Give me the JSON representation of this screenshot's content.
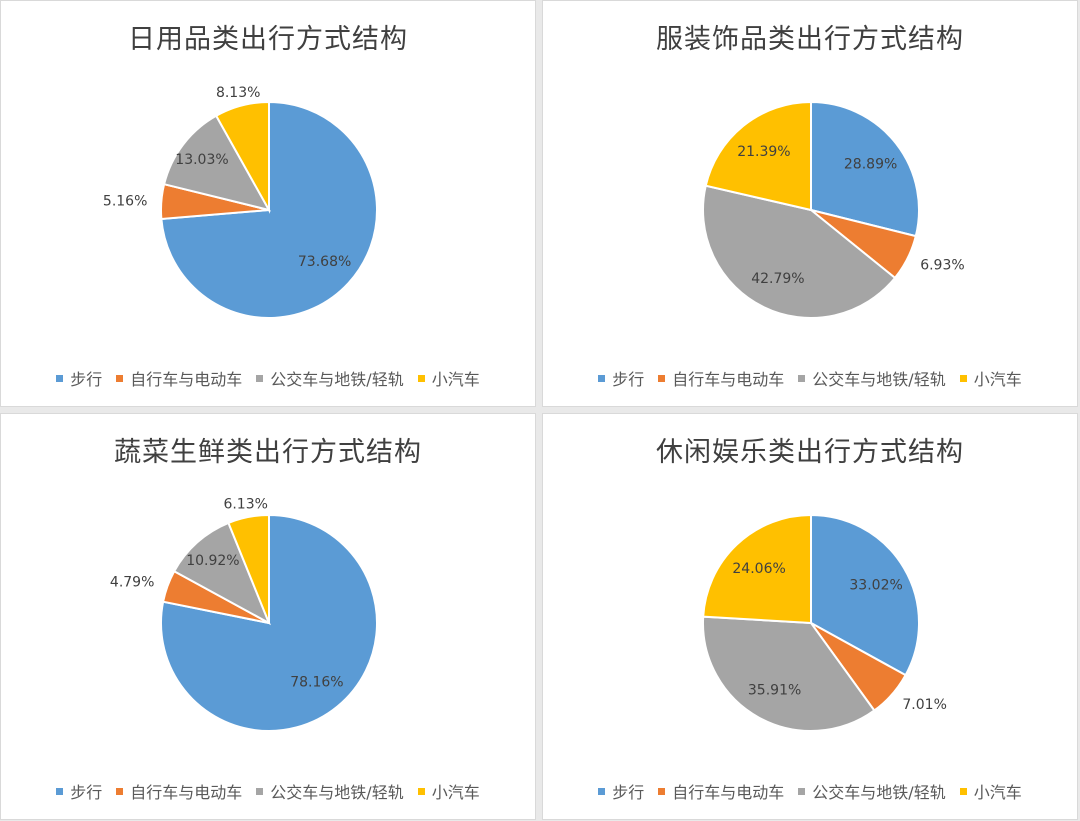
{
  "legend_colors": [
    "#5b9bd5",
    "#ed7d31",
    "#a5a5a5",
    "#ffc000"
  ],
  "chart_data": [
    {
      "type": "pie",
      "title": "日用品类出行方式结构",
      "categories": [
        "步行",
        "自行车与电动车",
        "公交车与地铁/轻轨",
        "小汽车"
      ],
      "values": [
        73.68,
        5.16,
        13.03,
        8.13
      ],
      "labels": [
        "73.68%",
        "5.16%",
        "13.03%",
        "8.13%"
      ],
      "legend": "bottom"
    },
    {
      "type": "pie",
      "title": "服装饰品类出行方式结构",
      "categories": [
        "步行",
        "自行车与电动车",
        "公交车与地铁/轻轨",
        "小汽车"
      ],
      "values": [
        28.89,
        6.93,
        42.79,
        21.39
      ],
      "labels": [
        "28.89%",
        "6.93%",
        "42.79%",
        "21.39%"
      ],
      "legend": "bottom"
    },
    {
      "type": "pie",
      "title": "蔬菜生鲜类出行方式结构",
      "categories": [
        "步行",
        "自行车与电动车",
        "公交车与地铁/轻轨",
        "小汽车"
      ],
      "values": [
        78.16,
        4.79,
        10.92,
        6.13
      ],
      "labels": [
        "78.16%",
        "4.79%",
        "10.92%",
        "6.13%"
      ],
      "legend": "bottom"
    },
    {
      "type": "pie",
      "title": "休闲娱乐类出行方式结构",
      "categories": [
        "步行",
        "自行车与电动车",
        "公交车与地铁/轻轨",
        "小汽车"
      ],
      "values": [
        33.02,
        7.01,
        35.91,
        24.06
      ],
      "labels": [
        "33.02%",
        "7.01%",
        "35.91%",
        "24.06%"
      ],
      "legend": "bottom"
    }
  ]
}
